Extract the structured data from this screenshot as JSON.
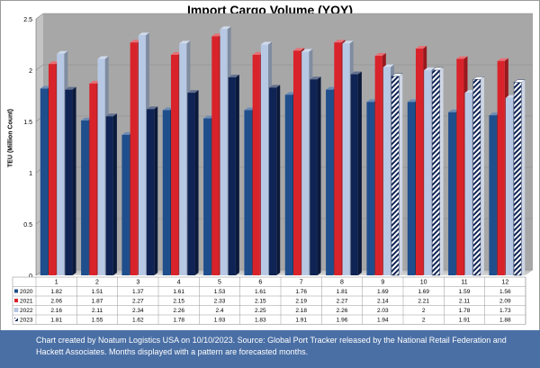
{
  "chart_data": {
    "type": "bar",
    "title": "Import Cargo Volume (YOY)",
    "ylabel": "TEU (Million Count)",
    "xlabel": "",
    "ylim": [
      0,
      2.5
    ],
    "yticks": [
      "0",
      "0.5",
      "1",
      "1.5",
      "2",
      "2.5"
    ],
    "grid": true,
    "categories": [
      "1",
      "2",
      "3",
      "4",
      "5",
      "6",
      "7",
      "8",
      "9",
      "10",
      "11",
      "12"
    ],
    "series": [
      {
        "name": "2020",
        "values": [
          1.82,
          1.51,
          1.37,
          1.61,
          1.53,
          1.61,
          1.76,
          1.81,
          1.69,
          1.69,
          1.59,
          1.56
        ],
        "color": "#1f4e8c"
      },
      {
        "name": "2021",
        "values": [
          2.06,
          1.87,
          2.27,
          2.15,
          2.33,
          2.15,
          2.19,
          2.27,
          2.14,
          2.21,
          2.11,
          2.09
        ],
        "color": "#d9232b"
      },
      {
        "name": "2022",
        "values": [
          2.16,
          2.11,
          2.34,
          2.26,
          2.4,
          2.25,
          2.18,
          2.26,
          2.03,
          2,
          1.78,
          1.73
        ],
        "color": "#b7c8e4"
      },
      {
        "name": "2023",
        "values": [
          1.81,
          1.55,
          1.62,
          1.78,
          1.93,
          1.83,
          1.91,
          1.96,
          1.94,
          2,
          1.91,
          1.88
        ],
        "color": "#0f2454"
      }
    ],
    "forecast_from_month": "9",
    "table_values": {
      "2020": [
        "1.82",
        "1.51",
        "1.37",
        "1.61",
        "1.53",
        "1.61",
        "1.76",
        "1.81",
        "1.69",
        "1.69",
        "1.59",
        "1.56"
      ],
      "2021": [
        "2.06",
        "1.87",
        "2.27",
        "2.15",
        "2.33",
        "2.15",
        "2.19",
        "2.27",
        "2.14",
        "2.21",
        "2.11",
        "2.09"
      ],
      "2022": [
        "2.16",
        "2.11",
        "2.34",
        "2.26",
        "2.4",
        "2.25",
        "2.18",
        "2.26",
        "2.03",
        "2",
        "1.78",
        "1.73"
      ],
      "2023": [
        "1.81",
        "1.55",
        "1.62",
        "1.78",
        "1.93",
        "1.83",
        "1.91",
        "1.96",
        "1.94",
        "2",
        "1.91",
        "1.88"
      ]
    }
  },
  "footnote": "Chart created by Noatum Logistics USA on 10/10/2023. Source: Global Port Tracker released by the National Retail Federation and Hackett Associates. Months displayed with a pattern are forecasted months."
}
